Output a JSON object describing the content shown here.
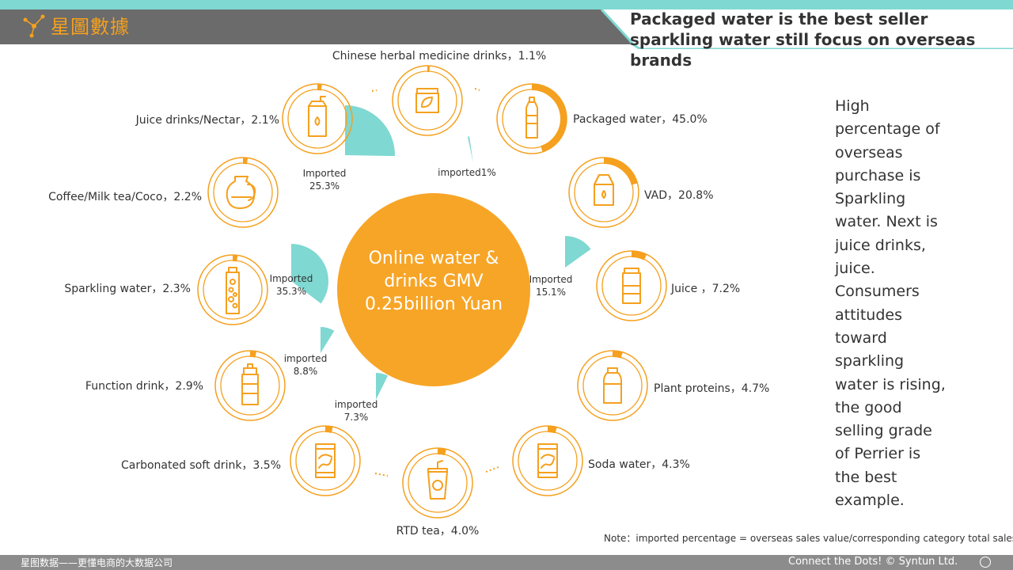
{
  "header": {
    "logo_text": "星圖數據",
    "title_line1": "Packaged water is the best seller",
    "title_line2": "sparkling water still focus on overseas brands"
  },
  "colors": {
    "orange": "#f5a01e",
    "teal": "#7fd8d2",
    "bar_gray": "#6b6b6b",
    "teal_band": "#7fd8d2"
  },
  "center": {
    "text": "Online water & drinks GMV 0.25billion Yuan"
  },
  "side_text": "High percentage of overseas purchase is Sparkling water. Next is juice drinks, juice. Consumers attitudes toward sparkling water is rising, the good selling grade of Perrier is the best example.",
  "note": "Note：imported percentage = overseas sales value/corresponding category total sales",
  "footer": {
    "left": "星图数据——更懂电商的大数据公司",
    "right": "Connect the Dots! © Syntun Ltd."
  },
  "chart_data": {
    "type": "pie",
    "title": "Online water & drinks GMV 0.25billion Yuan",
    "categories": [
      {
        "name": "Chinese herbal medicine drinks",
        "label": "Chinese herbal medicine drinks，1.1%",
        "share": 1.1,
        "icon": "herbal-jar-icon"
      },
      {
        "name": "Packaged water",
        "label": "Packaged water，45.0%",
        "share": 45.0,
        "icon": "water-bottle-icon"
      },
      {
        "name": "VAD",
        "label": "VAD，20.8%",
        "share": 20.8,
        "icon": "milk-carton-icon"
      },
      {
        "name": "Juice",
        "label": "Juice ，7.2%",
        "share": 7.2,
        "icon": "juice-box-icon"
      },
      {
        "name": "Plant proteins",
        "label": "Plant proteins，4.7%",
        "share": 4.7,
        "icon": "plant-milk-bottle-icon"
      },
      {
        "name": "Soda water",
        "label": "Soda water，4.3%",
        "share": 4.3,
        "icon": "soda-can-icon"
      },
      {
        "name": "RTD tea",
        "label": "RTD tea，4.0%",
        "share": 4.0,
        "icon": "tea-cup-icon"
      },
      {
        "name": "Carbonated soft drink",
        "label": "Carbonated soft drink，3.5%",
        "share": 3.5,
        "icon": "cola-can-icon"
      },
      {
        "name": "Function drink",
        "label": "Function drink，2.9%",
        "share": 2.9,
        "icon": "sport-bottle-icon"
      },
      {
        "name": "Sparkling water",
        "label": "Sparkling water，2.3%",
        "share": 2.3,
        "icon": "sparkling-bottle-icon"
      },
      {
        "name": "Coffee/Milk tea/Coco",
        "label": "Coffee/Milk tea/Coco，2.2%",
        "share": 2.2,
        "icon": "jug-icon"
      },
      {
        "name": "Juice drinks/Nectar",
        "label": "Juice drinks/Nectar，2.1%",
        "share": 2.1,
        "icon": "juice-drink-box-icon"
      }
    ],
    "imported": [
      {
        "category": "Packaged water",
        "line1": "imported1%",
        "line2": "",
        "value": 1
      },
      {
        "category": "Juice",
        "line1": "Imported",
        "line2": "15.1%",
        "value": 15.1
      },
      {
        "category": "Carbonated soft drink",
        "line1": "imported",
        "line2": "7.3%",
        "value": 7.3
      },
      {
        "category": "Function drink",
        "line1": "imported",
        "line2": "8.8%",
        "value": 8.8
      },
      {
        "category": "Sparkling water",
        "line1": "Imported",
        "line2": "35.3%",
        "value": 35.3
      },
      {
        "category": "Juice drinks/Nectar",
        "line1": "Imported",
        "line2": "25.3%",
        "value": 25.3
      }
    ]
  }
}
